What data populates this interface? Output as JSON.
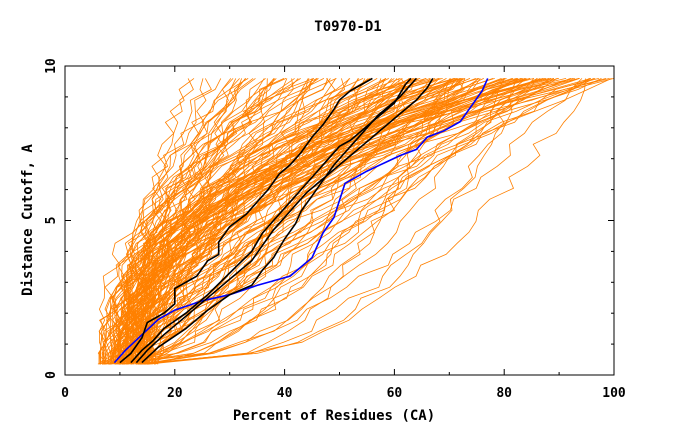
{
  "chart_data": {
    "type": "line",
    "title": "T0970-D1",
    "xlabel": "Percent of Residues (CA)",
    "ylabel": "Distance Cutoff, A",
    "xlim": [
      0,
      100
    ],
    "ylim": [
      0,
      10
    ],
    "x_ticks": [
      0,
      20,
      40,
      60,
      80,
      100
    ],
    "x_tick_labels": [
      "0",
      "20",
      "40",
      "60",
      "80",
      "100"
    ],
    "y_ticks": [
      0,
      5,
      10
    ],
    "y_tick_labels": [
      "0",
      "5",
      "10"
    ],
    "grid": false,
    "legend": "none",
    "colors": {
      "background_curves": "#ff8000",
      "black_curves": "#000000",
      "blue_curve": "#0000ff",
      "axes": "#000000"
    },
    "series": [
      {
        "color": "blue",
        "x": [
          9,
          11,
          14,
          17,
          20,
          25,
          30,
          35,
          41,
          45,
          47,
          49,
          51,
          55,
          61,
          64,
          66,
          69,
          72,
          74,
          76,
          77
        ],
        "y": [
          0.4,
          0.8,
          1.3,
          1.8,
          2.1,
          2.4,
          2.6,
          2.9,
          3.2,
          3.8,
          4.6,
          5.1,
          6.2,
          6.6,
          7.1,
          7.3,
          7.7,
          7.9,
          8.2,
          8.7,
          9.2,
          9.6
        ]
      },
      {
        "color": "black",
        "x": [
          10,
          12,
          14,
          15,
          18,
          20,
          20,
          24,
          26,
          28,
          28,
          30,
          33,
          35,
          37,
          39,
          41,
          43,
          45,
          47,
          49,
          50,
          52,
          54,
          56
        ],
        "y": [
          0.4,
          0.7,
          1.2,
          1.7,
          2.0,
          2.3,
          2.8,
          3.2,
          3.7,
          3.9,
          4.3,
          4.8,
          5.2,
          5.6,
          6.0,
          6.5,
          6.8,
          7.2,
          7.7,
          8.1,
          8.6,
          8.9,
          9.2,
          9.4,
          9.6
        ]
      },
      {
        "color": "black",
        "x": [
          12,
          14,
          16,
          18,
          22,
          26,
          30,
          34,
          36,
          38,
          40,
          42,
          44,
          46,
          48,
          50,
          52,
          54,
          56,
          58,
          60,
          61,
          62,
          63
        ],
        "y": [
          0.4,
          0.8,
          1.1,
          1.5,
          2.0,
          2.6,
          3.3,
          4.0,
          4.6,
          5.0,
          5.4,
          5.8,
          6.2,
          6.6,
          7.0,
          7.4,
          7.6,
          7.9,
          8.2,
          8.5,
          8.8,
          9.1,
          9.4,
          9.6
        ]
      },
      {
        "color": "black",
        "x": [
          13,
          15,
          18,
          22,
          26,
          30,
          34,
          36,
          38,
          40,
          42,
          44,
          46,
          48,
          50,
          52,
          54,
          56,
          58,
          60,
          62,
          64,
          66,
          67
        ],
        "y": [
          0.4,
          0.8,
          1.3,
          1.9,
          2.5,
          3.1,
          3.7,
          4.2,
          4.7,
          5.1,
          5.5,
          5.9,
          6.2,
          6.5,
          6.8,
          7.1,
          7.4,
          7.7,
          8.0,
          8.3,
          8.6,
          8.9,
          9.3,
          9.6
        ]
      },
      {
        "color": "black",
        "x": [
          14,
          17,
          22,
          26,
          30,
          34,
          36,
          38,
          40,
          42,
          43,
          45,
          47,
          49,
          51,
          53,
          55,
          57,
          59,
          61,
          62,
          63,
          64
        ],
        "y": [
          0.4,
          0.9,
          1.5,
          2.1,
          2.6,
          2.9,
          3.4,
          3.8,
          4.4,
          4.9,
          5.3,
          5.8,
          6.3,
          6.8,
          7.2,
          7.6,
          8.0,
          8.4,
          8.7,
          9.0,
          9.2,
          9.4,
          9.6
        ]
      }
    ]
  }
}
